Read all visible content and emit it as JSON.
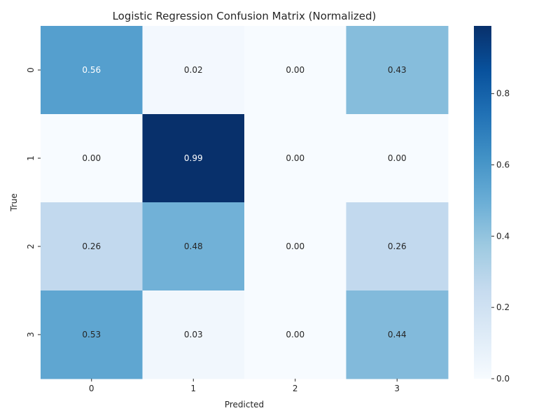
{
  "chart_data": {
    "type": "heatmap",
    "title": "Logistic Regression Confusion Matrix (Normalized)",
    "xlabel": "Predicted",
    "ylabel": "True",
    "x_categories": [
      "0",
      "1",
      "2",
      "3"
    ],
    "y_categories": [
      "0",
      "1",
      "2",
      "3"
    ],
    "values": [
      [
        0.56,
        0.02,
        0.0,
        0.43
      ],
      [
        0.0,
        0.99,
        0.0,
        0.0
      ],
      [
        0.26,
        0.48,
        0.0,
        0.26
      ],
      [
        0.53,
        0.03,
        0.0,
        0.44
      ]
    ],
    "value_format": "0.00",
    "colormap": "Blues",
    "color_range": [
      0,
      0.99
    ],
    "colorbar": {
      "ticks": [
        0.0,
        0.2,
        0.4,
        0.6,
        0.8
      ],
      "tick_labels": [
        "0.0",
        "0.2",
        "0.4",
        "0.6",
        "0.8"
      ],
      "placement": "right"
    },
    "grid": false
  }
}
